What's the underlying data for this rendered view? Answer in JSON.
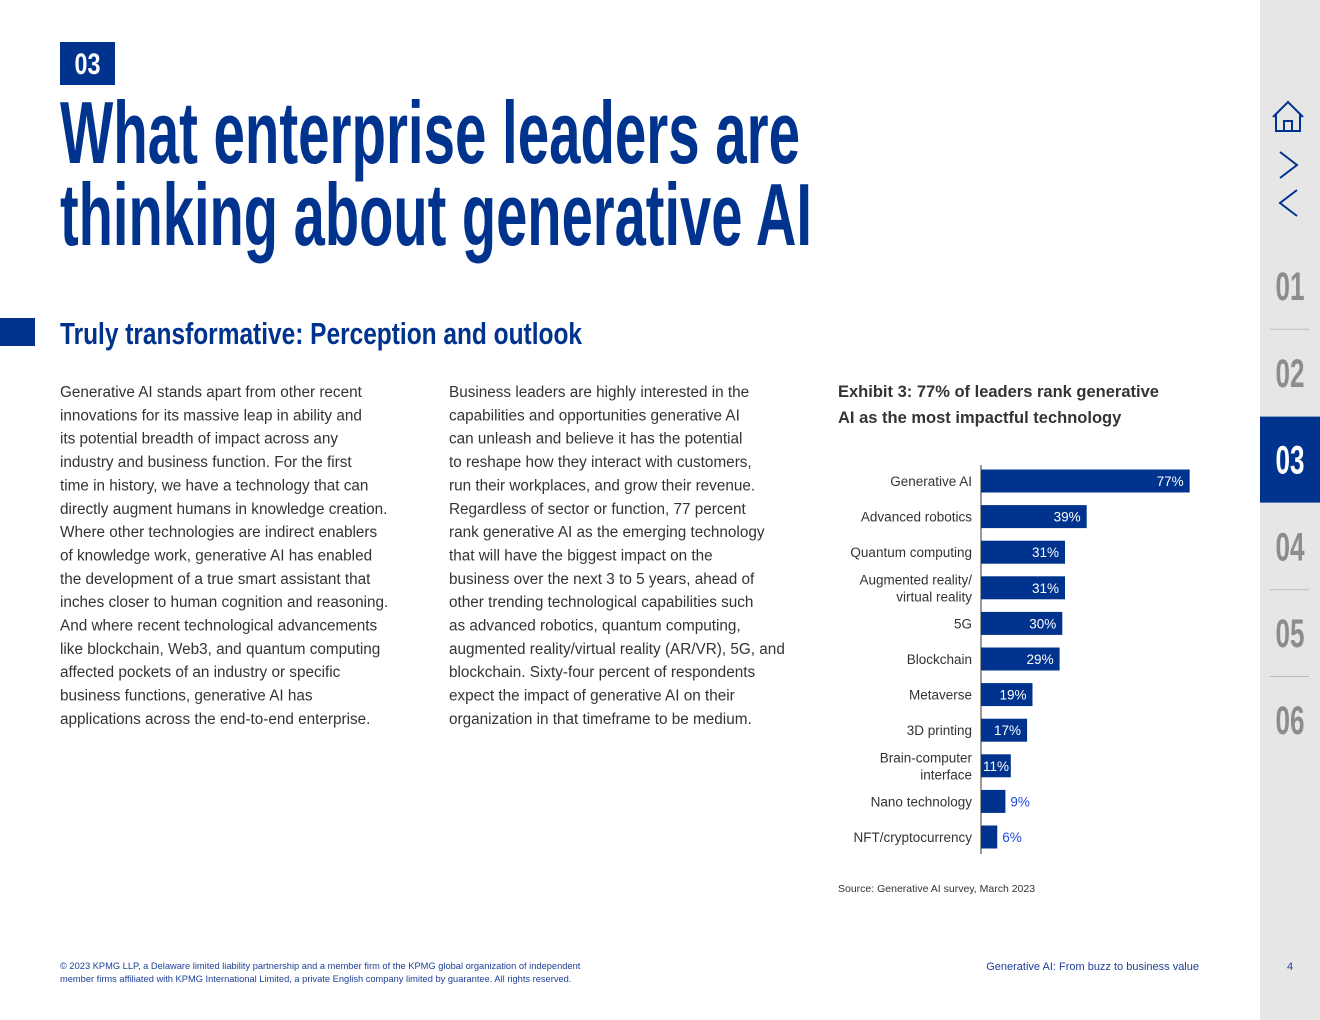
{
  "section_number": "03",
  "title_lines": [
    "What enterprise leaders are",
    "thinking about generative AI"
  ],
  "subtitle": "Truly transformative: Perception and outlook",
  "column_1_lines": [
    "Generative AI stands apart from other recent",
    "innovations for its massive leap in ability and",
    "its potential breadth of impact across any",
    "industry and business function. For the first",
    "time in history, we have a technology that can",
    "directly augment humans in knowledge creation.",
    "Where other technologies are indirect enablers",
    "of knowledge work, generative AI has enabled",
    "the development of a true smart assistant that",
    "inches closer to human cognition and reasoning.",
    "And where recent technological advancements",
    "like blockchain, Web3, and quantum computing",
    "affected pockets of an industry or specific",
    "business functions, generative AI has",
    "applications across the end-to-end enterprise."
  ],
  "column_2_lines": [
    "Business leaders are highly interested in the",
    "capabilities and opportunities generative AI",
    "can unleash and believe it has the potential",
    "to reshape how they interact with customers,",
    "run their workplaces, and grow their revenue.",
    "Regardless of sector or function, 77 percent",
    "rank generative AI as the emerging technology",
    "that will have the biggest impact on the",
    "business over the next 3 to 5 years, ahead of",
    "other trending technological capabilities such",
    "as advanced robotics, quantum computing,",
    "augmented reality/virtual reality (AR/VR), 5G, and",
    "blockchain. Sixty-four percent of respondents",
    "expect the impact of generative AI on their",
    "organization in that timeframe to be medium."
  ],
  "chart_data": {
    "type": "bar",
    "orientation": "horizontal",
    "title_lines": [
      "Exhibit 3: 77% of leaders rank generative",
      "AI as the most impactful technology"
    ],
    "categories": [
      [
        "Generative AI"
      ],
      [
        "Advanced robotics"
      ],
      [
        "Quantum computing"
      ],
      [
        "Augmented reality/",
        "virtual reality"
      ],
      [
        "5G"
      ],
      [
        "Blockchain"
      ],
      [
        "Metaverse"
      ],
      [
        "3D printing"
      ],
      [
        "Brain-computer",
        "interface"
      ],
      [
        "Nano technology"
      ],
      [
        "NFT/cryptocurrency"
      ]
    ],
    "values": [
      77,
      39,
      31,
      31,
      30,
      29,
      19,
      17,
      11,
      9,
      6
    ],
    "value_labels": [
      "77%",
      "39%",
      "31%",
      "31%",
      "30%",
      "29%",
      "19%",
      "17%",
      "11%",
      "9%",
      "6%"
    ],
    "color": "#00338d",
    "source": "Source: Generative AI survey, March 2023"
  },
  "nav": {
    "items": [
      {
        "label": "01",
        "selected": false
      },
      {
        "label": "02",
        "selected": false
      },
      {
        "label": "03",
        "selected": true
      },
      {
        "label": "04",
        "selected": false
      },
      {
        "label": "05",
        "selected": false
      },
      {
        "label": "06",
        "selected": false
      }
    ]
  },
  "footer": {
    "copyright_lines": [
      "© 2023 KPMG LLP, a Delaware limited liability partnership and a member firm of the KPMG global organization of independent",
      "member firms affiliated with KPMG International Limited, a private English company limited by guarantee. All rights reserved."
    ],
    "publication": "Generative AI: From buzz to business value",
    "page_number": "4"
  }
}
